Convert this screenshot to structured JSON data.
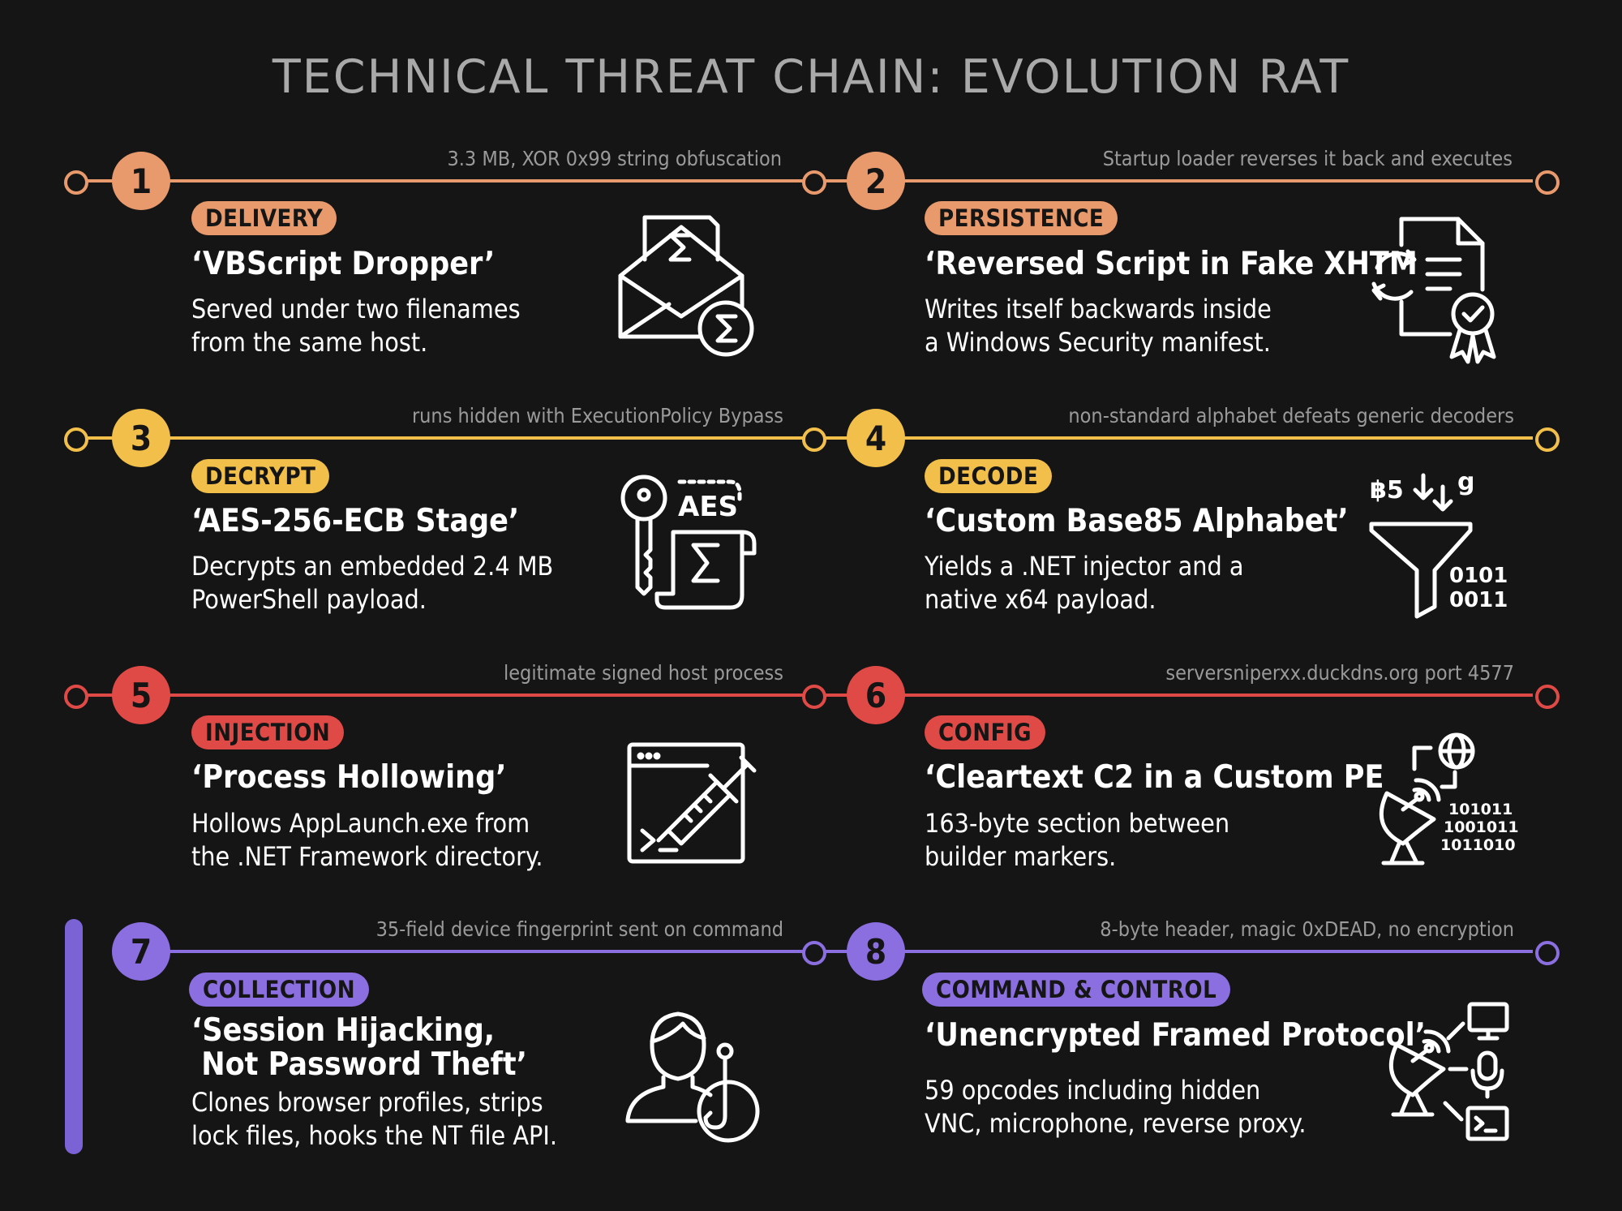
{
  "title": "TECHNICAL THREAT CHAIN: EVOLUTION RAT",
  "colors": {
    "orange": "#e99a6c",
    "yellow": "#f2c04a",
    "red": "#e04a46",
    "purple": "#8b6ee0",
    "background": "#151515"
  },
  "steps": [
    {
      "number": "1",
      "tag": "DELIVERY",
      "heading": "‘VBScript Dropper’",
      "description": "Served under two filenames\nfrom the same host.",
      "note": "3.3 MB, XOR 0x99 string obfuscation",
      "icon": "envelope-script-icon"
    },
    {
      "number": "2",
      "tag": "PERSISTENCE",
      "heading": "‘Reversed Script in Fake XHTM",
      "description": "Writes itself backwards inside\na Windows Security manifest.",
      "note": "Startup loader reverses it back and executes",
      "icon": "certificate-document-icon"
    },
    {
      "number": "3",
      "tag": "DECRYPT",
      "heading": "‘AES-256-ECB Stage’",
      "description": "Decrypts an embedded 2.4 MB\nPowerShell payload.",
      "note": "runs hidden with ExecutionPolicy Bypass",
      "icon": "key-scroll-icon",
      "icon_text": "AES"
    },
    {
      "number": "4",
      "tag": "DECODE",
      "heading": "‘Custom Base85 Alphabet’",
      "description": "Yields a .NET injector and a\nnative x64 payload.",
      "note": "non-standard alphabet defeats generic decoders",
      "icon": "funnel-binary-icon",
      "icon_text_top": "฿5",
      "icon_text_g": "g",
      "icon_text_bin1": "0101",
      "icon_text_bin2": "0011"
    },
    {
      "number": "5",
      "tag": "INJECTION",
      "heading": "‘Process Hollowing’",
      "description": "Hollows AppLaunch.exe from\nthe .NET Framework directory.",
      "note": "legitimate signed host process",
      "icon": "terminal-syringe-icon"
    },
    {
      "number": "6",
      "tag": "CONFIG",
      "heading": "‘Cleartext C2 in a Custom PE",
      "description": "163-byte section between\nbuilder markers.",
      "note": "serversniperxx.duckdns.org port 4577",
      "icon": "satellite-globe-icon",
      "icon_bin": [
        "101011",
        "1001011",
        "1011010"
      ]
    },
    {
      "number": "7",
      "tag": "COLLECTION",
      "heading": "‘Session Hijacking,\n Not Password Theft’",
      "description": "Clones browser profiles, strips\nlock files, hooks the NT file API.",
      "note": "35-field device fingerprint sent on command",
      "icon": "user-hook-icon"
    },
    {
      "number": "8",
      "tag": "COMMAND & CONTROL",
      "heading": "‘Unencrypted Framed Protocol’",
      "description": "59 opcodes including hidden\nVNC, microphone, reverse proxy.",
      "note": "8-byte header, magic 0xDEAD, no encryption",
      "icon": "satellite-devices-icon"
    }
  ]
}
